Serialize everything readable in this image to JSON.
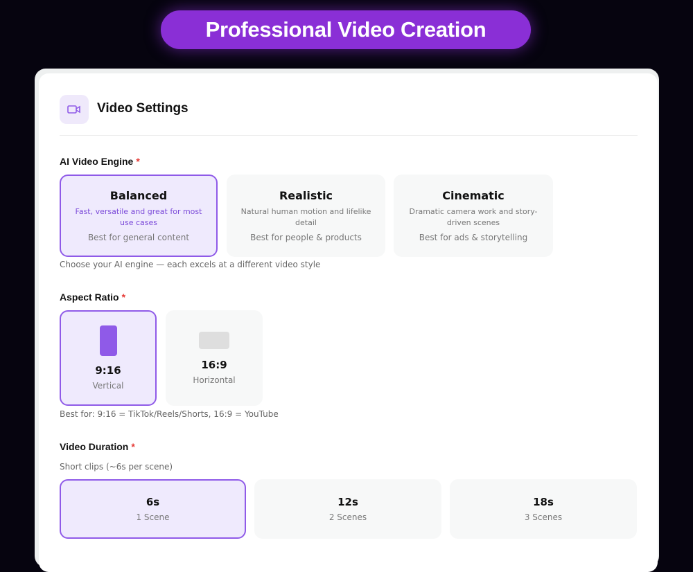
{
  "header": {
    "title": "Professional Video Creation"
  },
  "settings": {
    "title": "Video Settings",
    "icon": "video-camera-icon",
    "engine": {
      "label": "AI Video Engine",
      "required": "*",
      "options": [
        {
          "title": "Balanced",
          "description": "Fast, versatile and great for most use cases",
          "best": "Best for general content",
          "selected": true
        },
        {
          "title": "Realistic",
          "description": "Natural human motion and lifelike detail",
          "best": "Best for people & products",
          "selected": false
        },
        {
          "title": "Cinematic",
          "description": "Dramatic camera work and story-driven scenes",
          "best": "Best for ads & storytelling",
          "selected": false
        }
      ],
      "hint": "Choose your AI engine — each excels at a different video style"
    },
    "aspect": {
      "label": "Aspect Ratio",
      "required": "*",
      "options": [
        {
          "ratio": "9:16",
          "name": "Vertical",
          "selected": true
        },
        {
          "ratio": "16:9",
          "name": "Horizontal",
          "selected": false
        }
      ],
      "hint": "Best for: 9:16 = TikTok/Reels/Shorts, 16:9 = YouTube"
    },
    "duration": {
      "label": "Video Duration",
      "required": "*",
      "subtitle": "Short clips (~6s per scene)",
      "options": [
        {
          "value": "6s",
          "scenes": "1 Scene",
          "selected": true
        },
        {
          "value": "12s",
          "scenes": "2 Scenes",
          "selected": false
        },
        {
          "value": "18s",
          "scenes": "3 Scenes",
          "selected": false
        }
      ]
    }
  },
  "colors": {
    "accent": "#8f5ae8",
    "pill": "#8a2fd6",
    "background": "#06040f"
  }
}
